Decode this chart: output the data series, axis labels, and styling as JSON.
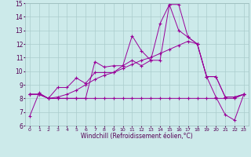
{
  "xlabel": "Windchill (Refroidissement éolien,°C)",
  "bg_color": "#cceaea",
  "line_color": "#990099",
  "grid_color": "#aacccc",
  "xlim": [
    -0.5,
    23.5
  ],
  "ylim": [
    6,
    15
  ],
  "xticks": [
    0,
    1,
    2,
    3,
    4,
    5,
    6,
    7,
    8,
    9,
    10,
    11,
    12,
    13,
    14,
    15,
    16,
    17,
    18,
    19,
    20,
    21,
    22,
    23
  ],
  "yticks": [
    6,
    7,
    8,
    9,
    10,
    11,
    12,
    13,
    14,
    15
  ],
  "series": [
    {
      "x": [
        0,
        1,
        2,
        3,
        4,
        5,
        6,
        7,
        8,
        9,
        10,
        11,
        12,
        13,
        14,
        15,
        16,
        17,
        18,
        19,
        20,
        21,
        22,
        23
      ],
      "y": [
        6.7,
        8.4,
        8.0,
        8.0,
        8.0,
        8.0,
        8.0,
        10.7,
        10.3,
        10.4,
        10.4,
        12.6,
        11.5,
        10.8,
        10.8,
        14.9,
        14.9,
        12.5,
        12.0,
        9.6,
        8.1,
        6.8,
        6.4,
        8.3
      ]
    },
    {
      "x": [
        0,
        1,
        2,
        3,
        4,
        5,
        6,
        7,
        8,
        9,
        10,
        11,
        12,
        13,
        14,
        15,
        16,
        17,
        18,
        19,
        20,
        21,
        22,
        23
      ],
      "y": [
        8.3,
        8.3,
        8.0,
        8.8,
        8.8,
        9.5,
        9.1,
        9.9,
        9.9,
        9.9,
        10.4,
        10.8,
        10.4,
        10.8,
        13.5,
        14.9,
        13.0,
        12.5,
        12.0,
        9.6,
        9.6,
        8.1,
        8.1,
        8.3
      ]
    },
    {
      "x": [
        0,
        1,
        2,
        3,
        4,
        5,
        6,
        7,
        8,
        9,
        10,
        11,
        12,
        13,
        14,
        15,
        16,
        17,
        18,
        19,
        20,
        21,
        22,
        23
      ],
      "y": [
        8.3,
        8.3,
        8.0,
        8.0,
        8.0,
        8.0,
        8.0,
        8.0,
        8.0,
        8.0,
        8.0,
        8.0,
        8.0,
        8.0,
        8.0,
        8.0,
        8.0,
        8.0,
        8.0,
        8.0,
        8.0,
        8.0,
        8.0,
        8.3
      ]
    },
    {
      "x": [
        0,
        1,
        2,
        3,
        4,
        5,
        6,
        7,
        8,
        9,
        10,
        11,
        12,
        13,
        14,
        15,
        16,
        17,
        18,
        19,
        20,
        21,
        22,
        23
      ],
      "y": [
        8.3,
        8.3,
        8.0,
        8.1,
        8.3,
        8.6,
        9.0,
        9.4,
        9.7,
        9.9,
        10.2,
        10.5,
        10.8,
        11.0,
        11.3,
        11.6,
        11.9,
        12.2,
        12.0,
        9.6,
        9.6,
        8.1,
        8.1,
        8.3
      ]
    }
  ]
}
